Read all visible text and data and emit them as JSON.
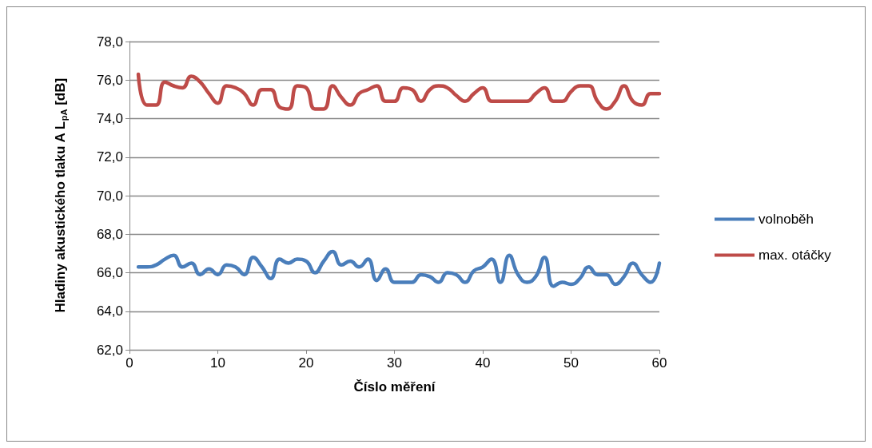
{
  "chart_data": {
    "type": "line",
    "xlabel": "Číslo měření",
    "ylabel": "Hladiny akustického tlaku A L$_{pA}$ [dB]",
    "x": [
      1,
      2,
      3,
      4,
      5,
      6,
      7,
      8,
      9,
      10,
      11,
      12,
      13,
      14,
      15,
      16,
      17,
      18,
      19,
      20,
      21,
      22,
      23,
      24,
      25,
      26,
      27,
      28,
      29,
      30,
      31,
      32,
      33,
      34,
      35,
      36,
      37,
      38,
      39,
      40,
      41,
      42,
      43,
      44,
      45,
      46,
      47,
      48,
      49,
      50,
      51,
      52,
      53,
      54,
      55,
      56,
      57,
      58,
      59,
      60
    ],
    "series": [
      {
        "name": "volnoběh",
        "color": "#4a7ebb",
        "values": [
          66.3,
          66.3,
          66.4,
          66.7,
          66.9,
          66.3,
          66.5,
          65.9,
          66.2,
          65.9,
          66.4,
          66.3,
          65.9,
          66.8,
          66.3,
          65.7,
          66.7,
          66.5,
          66.7,
          66.6,
          66.0,
          66.6,
          67.1,
          66.4,
          66.6,
          66.3,
          66.7,
          65.6,
          66.2,
          65.5,
          65.5,
          65.5,
          65.9,
          65.8,
          65.5,
          66.0,
          65.9,
          65.5,
          66.1,
          66.3,
          66.7,
          65.5,
          66.9,
          65.9,
          65.5,
          65.8,
          66.8,
          65.3,
          65.5,
          65.4,
          65.7,
          66.3,
          65.9,
          65.9,
          65.4,
          65.8,
          66.5,
          65.9,
          65.5,
          66.5
        ]
      },
      {
        "name": "max. otáčky",
        "color": "#be4b48",
        "values": [
          76.3,
          74.7,
          74.7,
          75.9,
          75.7,
          75.6,
          76.2,
          75.9,
          75.3,
          74.8,
          75.7,
          75.6,
          75.3,
          74.7,
          75.5,
          75.5,
          74.6,
          74.5,
          75.7,
          75.6,
          74.5,
          74.5,
          75.7,
          75.1,
          74.7,
          75.3,
          75.5,
          75.7,
          74.9,
          74.9,
          75.6,
          75.5,
          74.9,
          75.5,
          75.7,
          75.6,
          75.2,
          74.9,
          75.3,
          75.6,
          74.9,
          74.9,
          74.9,
          74.9,
          74.9,
          75.3,
          75.6,
          74.9,
          74.9,
          75.4,
          75.7,
          75.7,
          74.9,
          74.5,
          74.9,
          75.7,
          74.9,
          74.7,
          75.3,
          75.3
        ]
      }
    ],
    "xlim": [
      0,
      60
    ],
    "xticks": [
      0,
      10,
      20,
      30,
      40,
      50,
      60
    ],
    "ylim": [
      62,
      78
    ],
    "yticks": [
      {
        "value": 62,
        "label": "62,0"
      },
      {
        "value": 64,
        "label": "64,0"
      },
      {
        "value": 66,
        "label": "66,0"
      },
      {
        "value": 68,
        "label": "68,0"
      },
      {
        "value": 70,
        "label": "70,0"
      },
      {
        "value": 72,
        "label": "72,0"
      },
      {
        "value": 74,
        "label": "74,0"
      },
      {
        "value": 76,
        "label": "76,0"
      },
      {
        "value": 78,
        "label": "78,0"
      }
    ],
    "grid": "y",
    "legend": "right",
    "marker": "none",
    "line_style": "solid"
  }
}
